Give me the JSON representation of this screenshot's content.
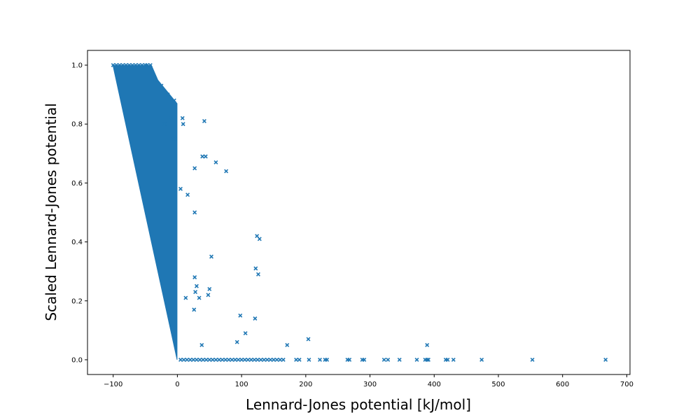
{
  "chart_data": {
    "type": "scatter",
    "title": "",
    "xlabel": "Lennard-Jones potential [kJ/mol]",
    "ylabel": "Scaled Lennard-Jones potential",
    "xlim": [
      -140,
      705
    ],
    "ylim": [
      -0.05,
      1.05
    ],
    "xticks": [
      -100,
      0,
      100,
      200,
      300,
      400,
      500,
      600,
      700
    ],
    "yticks": [
      0.0,
      0.2,
      0.4,
      0.6,
      0.8,
      1.0
    ],
    "xtick_labels": [
      "−100",
      "0",
      "100",
      "200",
      "300",
      "400",
      "500",
      "600",
      "700"
    ],
    "ytick_labels": [
      "0.0",
      "0.2",
      "0.4",
      "0.6",
      "0.8",
      "1.0"
    ],
    "marker": "x",
    "color": "#1f77b4",
    "grid": false,
    "dense_region": {
      "description_free_fill": [
        [
          -101,
          1.0
        ],
        [
          -40,
          1.0
        ],
        [
          -30,
          0.95
        ],
        [
          0,
          0.87
        ],
        [
          0,
          0.0
        ],
        [
          -1,
          0.0
        ]
      ]
    },
    "series": [
      {
        "points": [
          [
            -100,
            1.0
          ],
          [
            -95,
            1.0
          ],
          [
            -90,
            1.0
          ],
          [
            -85,
            1.0
          ],
          [
            -80,
            1.0
          ],
          [
            -75,
            1.0
          ],
          [
            -70,
            1.0
          ],
          [
            -65,
            1.0
          ],
          [
            -60,
            1.0
          ],
          [
            -55,
            1.0
          ],
          [
            -50,
            1.0
          ],
          [
            -47,
            1.0
          ],
          [
            -42,
            1.0
          ],
          [
            -35,
            0.95
          ],
          [
            -25,
            0.93
          ],
          [
            -15,
            0.9
          ],
          [
            -5,
            0.88
          ],
          [
            -10,
            0.82
          ],
          [
            -20,
            0.8
          ],
          [
            -5,
            0.75
          ],
          [
            8,
            0.82
          ],
          [
            9,
            0.8
          ],
          [
            42,
            0.81
          ],
          [
            39,
            0.69
          ],
          [
            44,
            0.69
          ],
          [
            60,
            0.67
          ],
          [
            76,
            0.64
          ],
          [
            27,
            0.65
          ],
          [
            16,
            0.56
          ],
          [
            5,
            0.58
          ],
          [
            27,
            0.5
          ],
          [
            124,
            0.42
          ],
          [
            128,
            0.41
          ],
          [
            53,
            0.35
          ],
          [
            122,
            0.31
          ],
          [
            126,
            0.29
          ],
          [
            27,
            0.28
          ],
          [
            30,
            0.25
          ],
          [
            50,
            0.24
          ],
          [
            28,
            0.23
          ],
          [
            48,
            0.22
          ],
          [
            34,
            0.21
          ],
          [
            13,
            0.21
          ],
          [
            26,
            0.17
          ],
          [
            98,
            0.15
          ],
          [
            121,
            0.14
          ],
          [
            106,
            0.09
          ],
          [
            93,
            0.06
          ],
          [
            38,
            0.05
          ],
          [
            171,
            0.05
          ],
          [
            204,
            0.07
          ],
          [
            389,
            0.05
          ],
          [
            5,
            0.0
          ],
          [
            10,
            0.0
          ],
          [
            15,
            0.0
          ],
          [
            20,
            0.0
          ],
          [
            25,
            0.0
          ],
          [
            30,
            0.0
          ],
          [
            35,
            0.0
          ],
          [
            40,
            0.0
          ],
          [
            45,
            0.0
          ],
          [
            50,
            0.0
          ],
          [
            55,
            0.0
          ],
          [
            60,
            0.0
          ],
          [
            65,
            0.0
          ],
          [
            70,
            0.0
          ],
          [
            75,
            0.0
          ],
          [
            80,
            0.0
          ],
          [
            85,
            0.0
          ],
          [
            90,
            0.0
          ],
          [
            95,
            0.0
          ],
          [
            100,
            0.0
          ],
          [
            105,
            0.0
          ],
          [
            110,
            0.0
          ],
          [
            115,
            0.0
          ],
          [
            120,
            0.0
          ],
          [
            125,
            0.0
          ],
          [
            130,
            0.0
          ],
          [
            135,
            0.0
          ],
          [
            140,
            0.0
          ],
          [
            145,
            0.0
          ],
          [
            150,
            0.0
          ],
          [
            155,
            0.0
          ],
          [
            160,
            0.0
          ],
          [
            165,
            0.0
          ],
          [
            185,
            0.0
          ],
          [
            190,
            0.0
          ],
          [
            205,
            0.0
          ],
          [
            222,
            0.0
          ],
          [
            230,
            0.0
          ],
          [
            233,
            0.0
          ],
          [
            265,
            0.0
          ],
          [
            268,
            0.0
          ],
          [
            288,
            0.0
          ],
          [
            291,
            0.0
          ],
          [
            322,
            0.0
          ],
          [
            328,
            0.0
          ],
          [
            346,
            0.0
          ],
          [
            373,
            0.0
          ],
          [
            386,
            0.0
          ],
          [
            389,
            0.0
          ],
          [
            391,
            0.0
          ],
          [
            418,
            0.0
          ],
          [
            421,
            0.0
          ],
          [
            430,
            0.0
          ],
          [
            474,
            0.0
          ],
          [
            553,
            0.0
          ],
          [
            667,
            0.0
          ]
        ]
      }
    ]
  }
}
